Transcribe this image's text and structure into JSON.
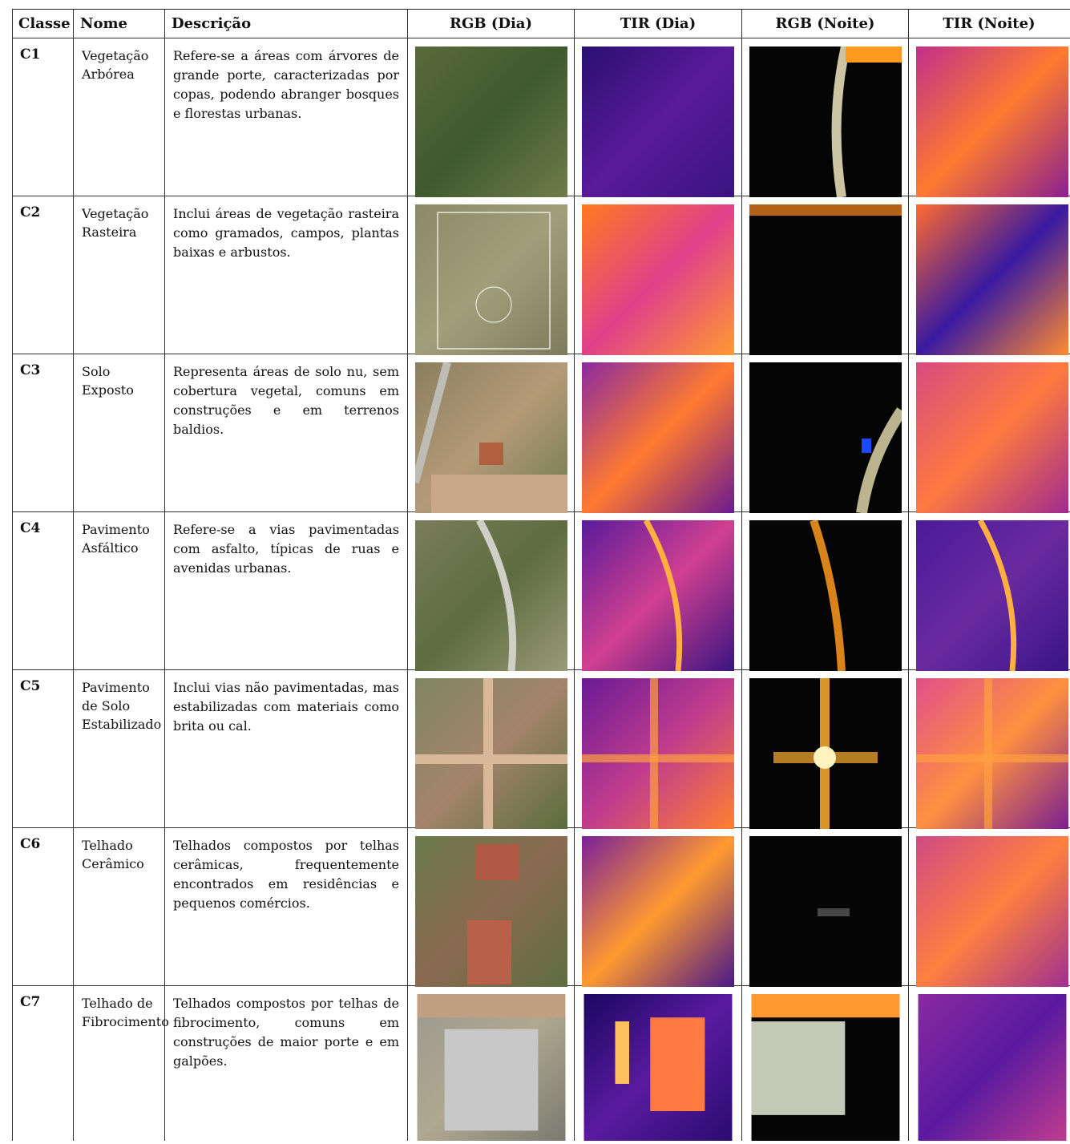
{
  "header": {
    "classe": "Classe",
    "nome": "Nome",
    "descricao": "Descrição",
    "rgb_dia": "RGB (Dia)",
    "tir_dia": "TIR (Dia)",
    "rgb_noite": "RGB (Noite)",
    "tir_noite": "TIR (Noite)"
  },
  "rows": [
    {
      "code": "C1",
      "name": "Vegetação Arbórea",
      "description": "Refere-se a áreas com árvores de grande porte, caracterizadas por copas, podendo abranger bosques e florestas urbanas."
    },
    {
      "code": "C2",
      "name": "Vegetação Rasteira",
      "description": "Inclui áreas de vegetação rasteira como gramados, campos, plantas baixas e arbustos."
    },
    {
      "code": "C3",
      "name": "Solo Exposto",
      "description": "Representa áreas de solo nu, sem cobertura vegetal, comuns em construções e em terrenos baldios."
    },
    {
      "code": "C4",
      "name": "Pavimento Asfáltico",
      "description": "Refere-se a vias pavimentadas com asfalto, típicas de ruas e avenidas urbanas."
    },
    {
      "code": "C5",
      "name": "Pavimento de Solo Estabilizado",
      "description": "Inclui vias não pavimentadas, mas estabilizadas com materiais como brita ou cal."
    },
    {
      "code": "C6",
      "name": "Telhado Cerâmico",
      "description": "Telhados compostos por telhas cerâmicas, frequentemente encontrados em residências e pequenos comércios."
    },
    {
      "code": "C7",
      "name": "Telhado de Fibrocimento",
      "description": "Telhados compostos por telhas de fibrocimento, comuns em construções de maior porte e em galpões."
    }
  ]
}
